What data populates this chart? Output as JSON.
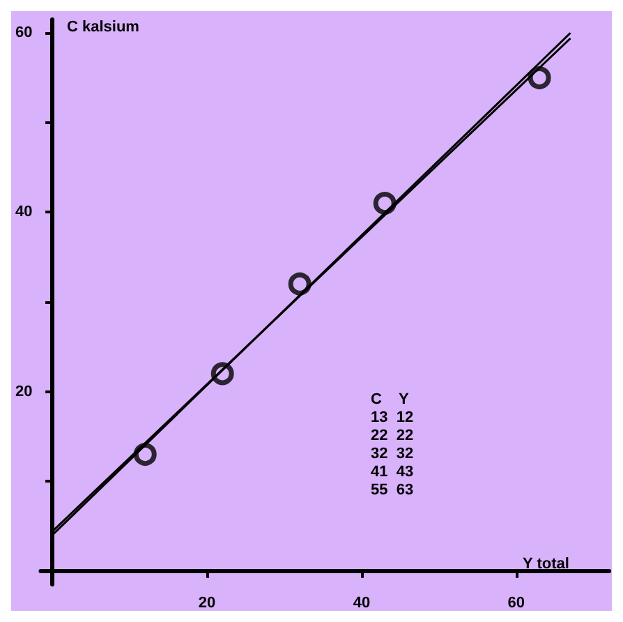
{
  "chart_data": {
    "type": "scatter",
    "xlabel": "Y total",
    "ylabel": "C kalsium",
    "series": [
      {
        "color": "#000000",
        "marker": "circle",
        "x": [
          12,
          22,
          32,
          43,
          63
        ],
        "values": [
          13,
          22,
          32,
          41,
          55
        ]
      },
      {
        "type": "line",
        "color": "#000000",
        "x": [
          0,
          67
        ],
        "values": [
          4,
          60
        ]
      },
      {
        "type": "line",
        "color": "#000000",
        "x": [
          0,
          67
        ],
        "values": [
          4.4,
          59.4
        ]
      }
    ],
    "xlim": [
      -1.5,
      72
    ],
    "ylim": [
      -1.5,
      61.5
    ],
    "xticks": [
      20,
      40,
      60
    ],
    "yticks": [
      {
        "value": 10,
        "label": null
      },
      20,
      {
        "value": 30,
        "label": null
      },
      40,
      {
        "value": 50,
        "label": null
      },
      60
    ],
    "grid": false,
    "annotations": [
      "C    Y\n13  12\n22  22\n32  32\n41  43\n55  63"
    ]
  }
}
